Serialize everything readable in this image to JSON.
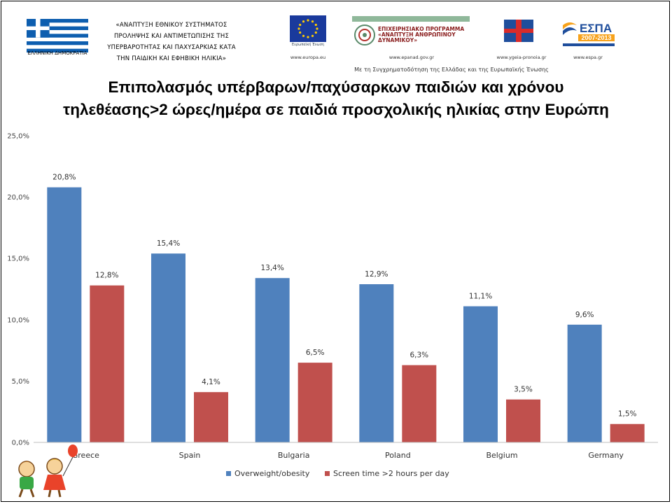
{
  "header": {
    "flag_caption": "ΕΛΛΗΝΙΚΗ ΔΗΜΟΚΡΑΤΙΑ",
    "project_lines": [
      "«ΑΝΑΠΤΥΞΗ ΕΘΝΙΚΟΥ ΣΥΣΤΗΜΑΤΟΣ",
      "ΠΡΟΛΗΨΗΣ ΚΑΙ ΑΝΤΙΜΕΤΩΠΙΣΗΣ ΤΗΣ",
      "ΥΠΕΡΒΑΡΟΤΗΤΑΣ ΚΑΙ ΠΑΧΥΣΑΡΚΙΑΣ ΚΑΤΑ",
      "ΤΗΝ ΠΑΙΔΙΚΗ ΚΑΙ ΕΦΗΒΙΚΗ ΗΛΙΚΙΑ»"
    ],
    "eu_caption": "Ευρωπαϊκή Ένωση",
    "eu_url": "www.europa.eu",
    "op_title": "ΕΠΙΧΕΙΡΗΣΙΑΚΟ ΠΡΟΓΡΑΜΜΑ «ΑΝΑΠΤΥΞΗ ΑΝΘΡΩΠΙΝΟΥ ΔΥΝΑΜΙΚΟΥ»",
    "op_url": "www.epanad.gov.gr",
    "health_url": "www.ygeia-pronoia.gr",
    "espa_label": "ΕΣΠΑ",
    "espa_years": "2007-2013",
    "espa_url": "www.espa.gr",
    "cofinancing": "Με τη Συγχρηματοδότηση της Ελλάδας και της Ευρωπαϊκής Ένωσης"
  },
  "title_lines": [
    "Επιπολασμός υπέρβαρων/παχύσαρκων παιδιών και χρόνου",
    "τηλεθέασης>2 ώρες/ημέρα σε παιδιά προσχολικής ηλικίας στην Ευρώπη"
  ],
  "chart_data": {
    "type": "bar",
    "title": "Επιπολασμός υπέρβαρων/παχύσαρκων παιδιών και χρόνου τηλεθέασης>2 ώρες/ημέρα σε παιδιά προσχολικής ηλικίας στην Ευρώπη",
    "categories": [
      "Greece",
      "Spain",
      "Bulgaria",
      "Poland",
      "Belgium",
      "Germany"
    ],
    "series": [
      {
        "name": "Overweight/obesity",
        "values": [
          20.8,
          15.4,
          13.4,
          12.9,
          11.1,
          9.6
        ],
        "labels": [
          "20,8%",
          "15,4%",
          "13,4%",
          "12,9%",
          "11,1%",
          "9,6%"
        ],
        "color": "#4f81bd"
      },
      {
        "name": "Screen time >2 hours per day",
        "values": [
          12.8,
          4.1,
          6.5,
          6.3,
          3.5,
          1.5
        ],
        "labels": [
          "12,8%",
          "4,1%",
          "6,5%",
          "6,3%",
          "3,5%",
          "1,5%"
        ],
        "color": "#c0504d"
      }
    ],
    "yticks": [
      "0,0%",
      "5,0%",
      "10,0%",
      "15,0%",
      "20,0%",
      "25,0%"
    ],
    "ylim": [
      0,
      25
    ],
    "xlabel": "",
    "ylabel": "",
    "grid": false,
    "legend_position": "bottom"
  }
}
